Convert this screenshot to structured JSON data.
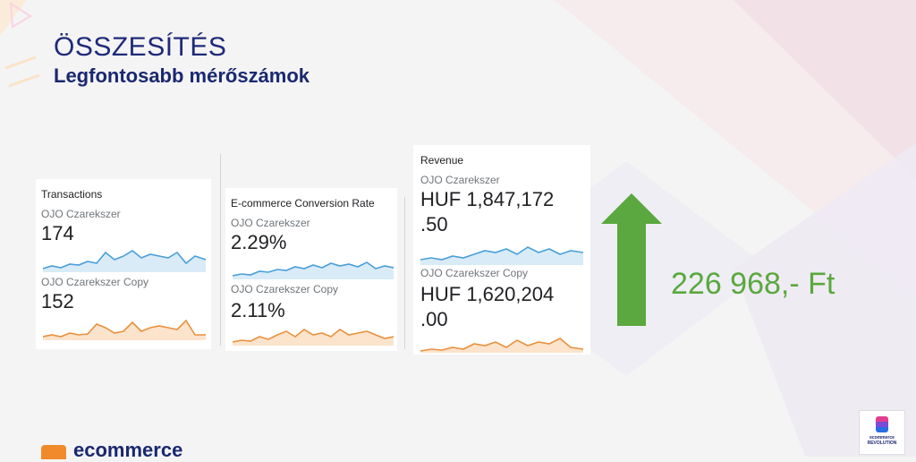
{
  "header": {
    "title": "ÖSSZESÍTÉS",
    "subtitle": "Legfontosabb mérőszámok"
  },
  "metrics": [
    {
      "title": "Transactions",
      "segments": [
        {
          "name": "OJO Czarekszer",
          "value": "174",
          "color": "#4a9fd8"
        },
        {
          "name": "OJO Czarekszer Copy",
          "value": "152",
          "color": "#e8913e"
        }
      ]
    },
    {
      "title": "E-commerce Conversion Rate",
      "segments": [
        {
          "name": "OJO Czarekszer",
          "value": "2.29%",
          "color": "#4a9fd8"
        },
        {
          "name": "OJO Czarekszer Copy",
          "value": "2.11%",
          "color": "#e8913e"
        }
      ]
    },
    {
      "title": "Revenue",
      "segments": [
        {
          "name": "OJO Czarekszer",
          "value_line1": "HUF 1,847,172",
          "value_line2": ".50",
          "color": "#4a9fd8"
        },
        {
          "name": "OJO Czarekszer Copy",
          "value_line1": "HUF 1,620,204",
          "value_line2": ".00",
          "color": "#e8913e"
        }
      ]
    }
  ],
  "difference": {
    "label": "226 968,- Ft",
    "arrow_color": "#5aa83f"
  },
  "branding": {
    "logo_text": "ecommerce",
    "badge_line1": "ecommerce",
    "badge_line2": "REVOLUTION"
  }
}
